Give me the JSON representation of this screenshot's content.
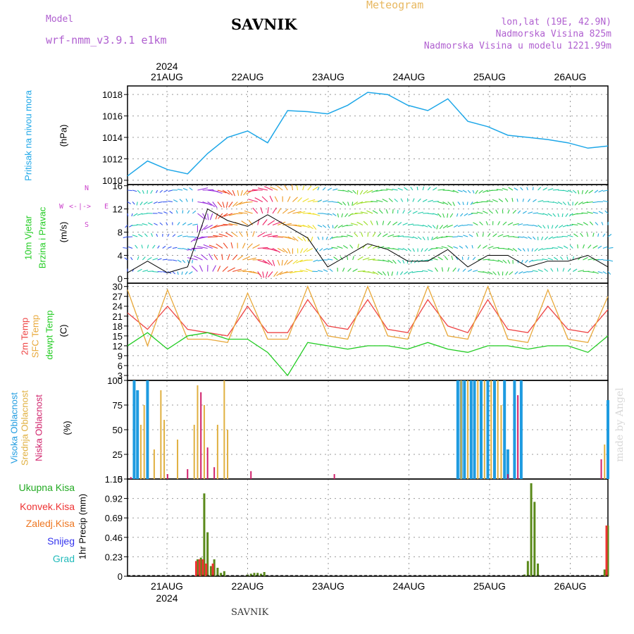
{
  "header": {
    "product": "Meteogram",
    "model_label": "Model",
    "model_name": "wrf-nmm_v3.9.1 e1km",
    "station": "SAVNIK",
    "lonlat": "lon,lat (19E, 42.9N)",
    "altitude": "Nadmorska Visina 825m",
    "model_altitude": "Nadmorska Visina u modelu 1221.99m"
  },
  "footer": {
    "station": "SAVNIK",
    "credit": "made by Angel"
  },
  "colors": {
    "pressure": "#1ea7e8",
    "temp2m": "#ee4444",
    "sfc": "#e8a83a",
    "dewpt": "#22cc22",
    "high_cloud": "#1e9be0",
    "mid_cloud": "#e0b040",
    "low_cloud": "#d0206a",
    "total_precip": "#5a8a1a",
    "conv_precip": "#ee3333",
    "wind_label": "#cc44cc"
  },
  "chart_data": [
    {
      "panel": "pressure",
      "type": "line",
      "ylabel": "Pritisak na nivou mora",
      "unit": "(hPa)",
      "ylim": [
        1009.6,
        1018.8
      ],
      "yticks": [
        1010,
        1012,
        1014,
        1016,
        1018
      ],
      "x_dates": [
        "21AUG",
        "22AUG",
        "23AUG",
        "24AUG",
        "25AUG",
        "26AUG"
      ],
      "year": "2024",
      "x_hours": [
        0,
        6,
        12,
        18,
        24,
        30,
        36,
        42,
        48,
        54,
        60,
        66,
        72,
        78,
        84,
        90,
        96,
        102,
        108,
        114,
        120,
        126,
        132,
        138,
        144
      ],
      "series": [
        {
          "name": "pressure",
          "values": [
            1010.4,
            1011.8,
            1011.0,
            1010.6,
            1012.5,
            1014.0,
            1014.6,
            1013.5,
            1016.5,
            1016.4,
            1016.2,
            1017.0,
            1018.2,
            1018.0,
            1017.0,
            1016.5,
            1017.6,
            1015.5,
            1015.0,
            1014.2,
            1014.0,
            1013.8,
            1013.5,
            1013.0,
            1013.2
          ]
        }
      ]
    },
    {
      "panel": "wind",
      "type": "line",
      "ylabel_1": "10m Vjetar",
      "ylabel_2": "Brzina i Pravac",
      "unit": "(m/s)",
      "compass": [
        "W",
        "<-",
        "|",
        "->",
        "E",
        "S",
        "N"
      ],
      "ylim": [
        -0.8,
        16.2
      ],
      "yticks": [
        0,
        4,
        8,
        12,
        16
      ],
      "x_hours": [
        0,
        6,
        12,
        18,
        24,
        30,
        36,
        42,
        48,
        54,
        60,
        66,
        72,
        78,
        84,
        90,
        96,
        102,
        108,
        114,
        120,
        126,
        132,
        138,
        144
      ],
      "series": [
        {
          "name": "wind_speed",
          "values": [
            1,
            3,
            1,
            2,
            12,
            10,
            9,
            11,
            9,
            7,
            2,
            4,
            6,
            5,
            3,
            3,
            5,
            2,
            4,
            4,
            2,
            3,
            3,
            4,
            2
          ]
        }
      ]
    },
    {
      "panel": "temperature",
      "type": "line",
      "ylabel_1": "2m Temp",
      "ylabel_2": "SFC Temp",
      "ylabel_3": "dewpt Temp",
      "unit": "(C)",
      "ylim": [
        1.5,
        31.0
      ],
      "yticks": [
        3,
        6,
        9,
        12,
        15,
        18,
        21,
        24,
        27,
        30
      ],
      "x_hours": [
        0,
        6,
        12,
        18,
        24,
        30,
        36,
        42,
        48,
        54,
        60,
        66,
        72,
        78,
        84,
        90,
        96,
        102,
        108,
        114,
        120,
        126,
        132,
        138,
        144
      ],
      "series": [
        {
          "name": "2m Temp",
          "values": [
            22,
            17,
            24,
            17,
            16,
            15,
            24,
            16,
            16,
            26,
            18,
            17,
            26,
            17,
            16,
            26,
            18,
            16,
            26,
            17,
            16,
            24,
            17,
            16,
            23
          ]
        },
        {
          "name": "SFC Temp",
          "values": [
            29,
            12,
            29,
            14,
            14,
            13,
            28,
            14,
            14,
            30,
            15,
            14,
            30,
            15,
            14,
            30,
            15,
            14,
            30,
            14,
            13,
            29,
            14,
            13,
            27
          ]
        },
        {
          "name": "dewpt Temp",
          "values": [
            12,
            16,
            11,
            15,
            16,
            14,
            14,
            10,
            3,
            13,
            12,
            11,
            12,
            12,
            11,
            13,
            11,
            10,
            12,
            12,
            11,
            12,
            12,
            10,
            15
          ]
        }
      ]
    },
    {
      "panel": "cloud",
      "type": "bar",
      "ylabel_1": "Visoka Oblacnost",
      "ylabel_2": "Srednja Oblacnost",
      "ylabel_3": "Niska Oblacnost",
      "unit": "(%)",
      "ylim": [
        0,
        100
      ],
      "yticks": [
        0,
        25,
        50,
        75,
        100
      ],
      "series": [
        {
          "name": "Visoka",
          "bars": [
            [
              2,
              100
            ],
            [
              3,
              90
            ],
            [
              6,
              100
            ],
            [
              99,
              100
            ],
            [
              100,
              100
            ],
            [
              101,
              100
            ],
            [
              103,
              100
            ],
            [
              104,
              100
            ],
            [
              106,
              100
            ],
            [
              108,
              100
            ],
            [
              110,
              100
            ],
            [
              113,
              100
            ],
            [
              114,
              30
            ],
            [
              116,
              100
            ],
            [
              118,
              100
            ],
            [
              144,
              80
            ]
          ]
        },
        {
          "name": "Srednja",
          "bars": [
            [
              4,
              55
            ],
            [
              5,
              75
            ],
            [
              8,
              30
            ],
            [
              10,
              90
            ],
            [
              11,
              60
            ],
            [
              15,
              40
            ],
            [
              20,
              55
            ],
            [
              21,
              95
            ],
            [
              23,
              75
            ],
            [
              27,
              55
            ],
            [
              29,
              100
            ],
            [
              30,
              50
            ],
            [
              100,
              100
            ],
            [
              102,
              100
            ],
            [
              105,
              100
            ],
            [
              107,
              100
            ],
            [
              109,
              100
            ],
            [
              111,
              100
            ],
            [
              112,
              75
            ],
            [
              143,
              35
            ]
          ]
        },
        {
          "name": "Niska",
          "bars": [
            [
              1,
              2
            ],
            [
              12,
              5
            ],
            [
              18,
              10
            ],
            [
              22,
              88
            ],
            [
              24,
              32
            ],
            [
              26,
              12
            ],
            [
              37,
              8
            ],
            [
              62,
              5
            ],
            [
              114,
              5
            ],
            [
              117,
              85
            ],
            [
              142,
              20
            ]
          ]
        }
      ]
    },
    {
      "panel": "precip",
      "type": "bar",
      "labels": [
        "Ukupna Kisa",
        "Konvek.Kisa",
        "Zaledj.Kisa",
        "Snijeg",
        "Grad"
      ],
      "label_colors": [
        "#22aa22",
        "#ee3333",
        "#ee7722",
        "#3333ee",
        "#22bbbb"
      ],
      "ylabel": "1hr Precip (mm)",
      "ylim": [
        0,
        1.15
      ],
      "yticks": [
        0,
        0.23,
        0.46,
        0.69,
        0.92,
        1.15
      ],
      "series": [
        {
          "name": "Ukupna Kisa",
          "bars": [
            [
              21,
              0.2
            ],
            [
              22,
              0.22
            ],
            [
              23,
              0.98
            ],
            [
              24,
              0.52
            ],
            [
              25,
              0.12
            ],
            [
              26,
              0.2
            ],
            [
              27,
              0.1
            ],
            [
              28,
              0.04
            ],
            [
              29,
              0.06
            ],
            [
              36,
              0.02
            ],
            [
              37,
              0.03
            ],
            [
              38,
              0.04
            ],
            [
              39,
              0.04
            ],
            [
              40,
              0.03
            ],
            [
              41,
              0.05
            ],
            [
              119,
              0.02
            ],
            [
              120,
              0.18
            ],
            [
              121,
              1.1
            ],
            [
              122,
              0.88
            ],
            [
              123,
              0.15
            ],
            [
              143,
              0.08
            ],
            [
              144,
              0.6
            ]
          ]
        },
        {
          "name": "Konvek.Kisa",
          "bars": [
            [
              21,
              0.18
            ],
            [
              22,
              0.2
            ],
            [
              23,
              0.2
            ],
            [
              24,
              0.15
            ],
            [
              26,
              0.15
            ],
            [
              144,
              0.6
            ]
          ]
        }
      ]
    }
  ]
}
